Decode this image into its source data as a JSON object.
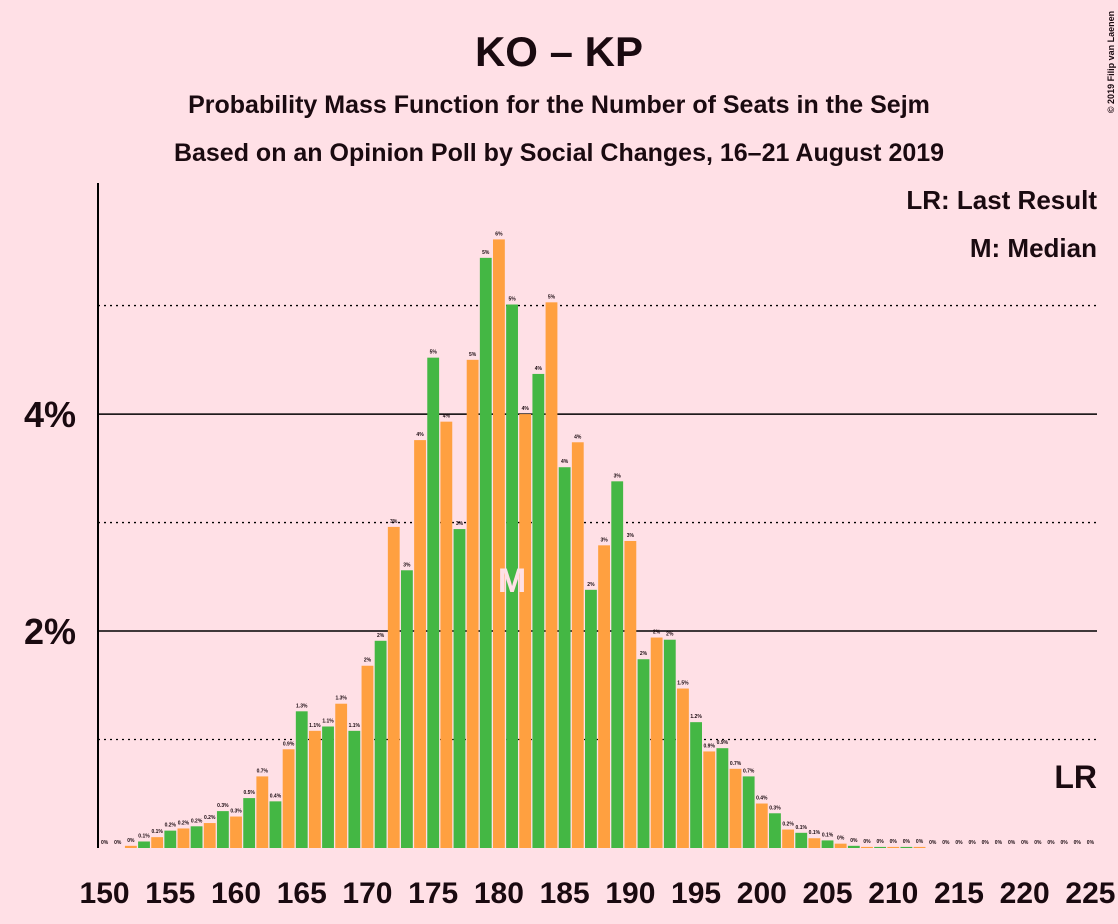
{
  "chart_data": {
    "type": "bar",
    "title": "KO – KP",
    "subtitle": "Probability Mass Function for the Number of Seats in the Sejm",
    "subtitle2": "Based on an Opinion Poll by Social Changes, 16–21 August 2019",
    "copyright": "© 2019 Filip van Laenen",
    "legend_lr": "LR: Last Result",
    "legend_median": "M: Median",
    "lr_label": "LR",
    "median_label": "M",
    "median": 181,
    "colors": [
      "#ffa040",
      "#44b744"
    ],
    "x": [
      150,
      151,
      152,
      153,
      154,
      155,
      156,
      157,
      158,
      159,
      160,
      161,
      162,
      163,
      164,
      165,
      166,
      167,
      168,
      169,
      170,
      171,
      172,
      173,
      174,
      175,
      176,
      177,
      178,
      179,
      180,
      181,
      182,
      183,
      184,
      185,
      186,
      187,
      188,
      189,
      190,
      191,
      192,
      193,
      194,
      195,
      196,
      197,
      198,
      199,
      200,
      201,
      202,
      203,
      204,
      205,
      206,
      207,
      208,
      209,
      210,
      211,
      212,
      213,
      214,
      215,
      216,
      217,
      218,
      219,
      220,
      221,
      222,
      223,
      224,
      225
    ],
    "values": [
      0,
      0,
      0.02,
      0.06,
      0.1,
      0.16,
      0.18,
      0.2,
      0.23,
      0.34,
      0.29,
      0.46,
      0.66,
      0.43,
      0.91,
      1.26,
      1.08,
      1.12,
      1.33,
      1.08,
      1.68,
      1.91,
      2.96,
      2.56,
      3.76,
      4.52,
      3.93,
      2.94,
      4.5,
      5.44,
      5.61,
      5.01,
      4.0,
      4.37,
      5.03,
      3.51,
      3.74,
      2.38,
      2.79,
      3.38,
      2.83,
      1.74,
      1.94,
      1.92,
      1.47,
      1.16,
      0.89,
      0.92,
      0.73,
      0.66,
      0.41,
      0.32,
      0.17,
      0.14,
      0.09,
      0.07,
      0.04,
      0.02,
      0.01,
      0.01,
      0.01,
      0.01,
      0.01,
      0,
      0,
      0,
      0,
      0,
      0,
      0,
      0,
      0,
      0,
      0,
      0,
      0
    ],
    "value_labels": [
      "0%",
      "0%",
      "0%",
      "0.1%",
      "0.1%",
      "0.2%",
      "0.2%",
      "0.2%",
      "0.2%",
      "0.3%",
      "0.3%",
      "0.5%",
      "0.7%",
      "0.4%",
      "0.9%",
      "1.3%",
      "1.1%",
      "1.1%",
      "1.3%",
      "1.1%",
      "2%",
      "2%",
      "3%",
      "3%",
      "4%",
      "5%",
      "4%",
      "3%",
      "5%",
      "5%",
      "6%",
      "5%",
      "4%",
      "4%",
      "5%",
      "4%",
      "4%",
      "2%",
      "3%",
      "3%",
      "3%",
      "2%",
      "2%",
      "2%",
      "1.5%",
      "1.2%",
      "0.9%",
      "0.9%",
      "0.7%",
      "0.7%",
      "0.4%",
      "0.3%",
      "0.2%",
      "0.1%",
      "0.1%",
      "0.1%",
      "0%",
      "0%",
      "0%",
      "0%",
      "0%",
      "0%",
      "0%",
      "0%",
      "0%",
      "0%",
      "0%",
      "0%",
      "0%",
      "0%",
      "0%",
      "0%",
      "0%",
      "0%",
      "0%",
      "0%"
    ],
    "xlim": [
      149.5,
      225.5
    ],
    "xticks": [
      150,
      155,
      160,
      165,
      170,
      175,
      180,
      185,
      190,
      195,
      200,
      205,
      210,
      215,
      220,
      225
    ],
    "ylim": [
      0,
      6.13
    ],
    "yticks": [
      {
        "value": 2,
        "label": "2%"
      },
      {
        "value": 4,
        "label": "4%"
      }
    ],
    "minor_yticks": [
      1,
      3,
      5
    ],
    "grid": true
  }
}
